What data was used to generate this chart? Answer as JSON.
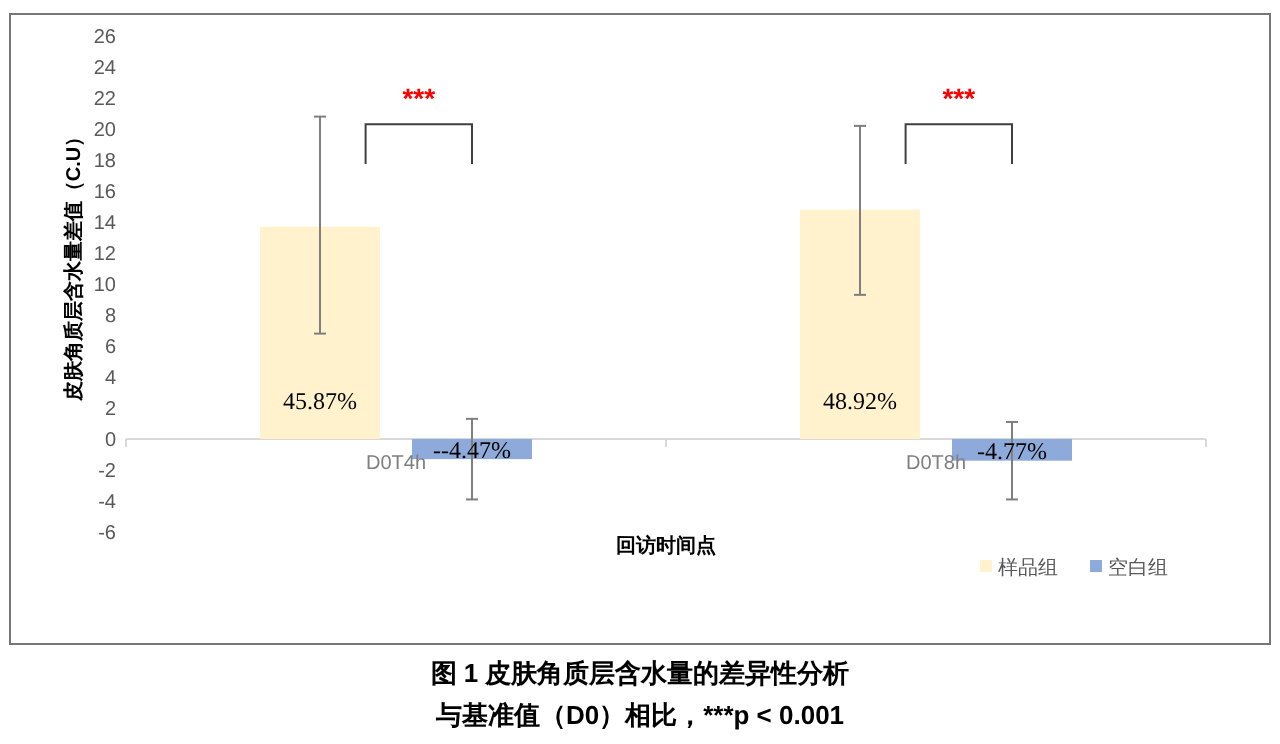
{
  "chart_data": {
    "type": "bar",
    "title": "图 1  皮肤角质层含水量的差异性分析",
    "xlabel": "回访时间点",
    "ylabel": "皮肤角质层含水量差值（C.U）",
    "categories": [
      "D0T4h",
      "D0T8h"
    ],
    "series": [
      {
        "name": "样品组",
        "color": "#fff2cc",
        "values": [
          13.7,
          14.8
        ],
        "errors": [
          [
            6.8,
            20.8
          ],
          [
            9.3,
            20.2
          ]
        ]
      },
      {
        "name": "空白组",
        "color": "#8eaadb",
        "values": [
          -1.3,
          -1.4
        ],
        "errors": [
          [
            -3.9,
            1.3
          ],
          [
            -3.9,
            1.1
          ]
        ]
      }
    ],
    "ylim": [
      -6,
      26
    ],
    "yticks": [
      -6,
      -4,
      -2,
      0,
      2,
      4,
      6,
      8,
      10,
      12,
      14,
      16,
      18,
      20,
      22,
      24,
      26
    ],
    "grid": false,
    "legend": "bottom right",
    "annotations": [
      "***",
      "***",
      "与基准值（D0）相比，***p < 0.001",
      "45.87%",
      "--4.47%",
      "48.92%",
      "-4.77%"
    ]
  }
}
